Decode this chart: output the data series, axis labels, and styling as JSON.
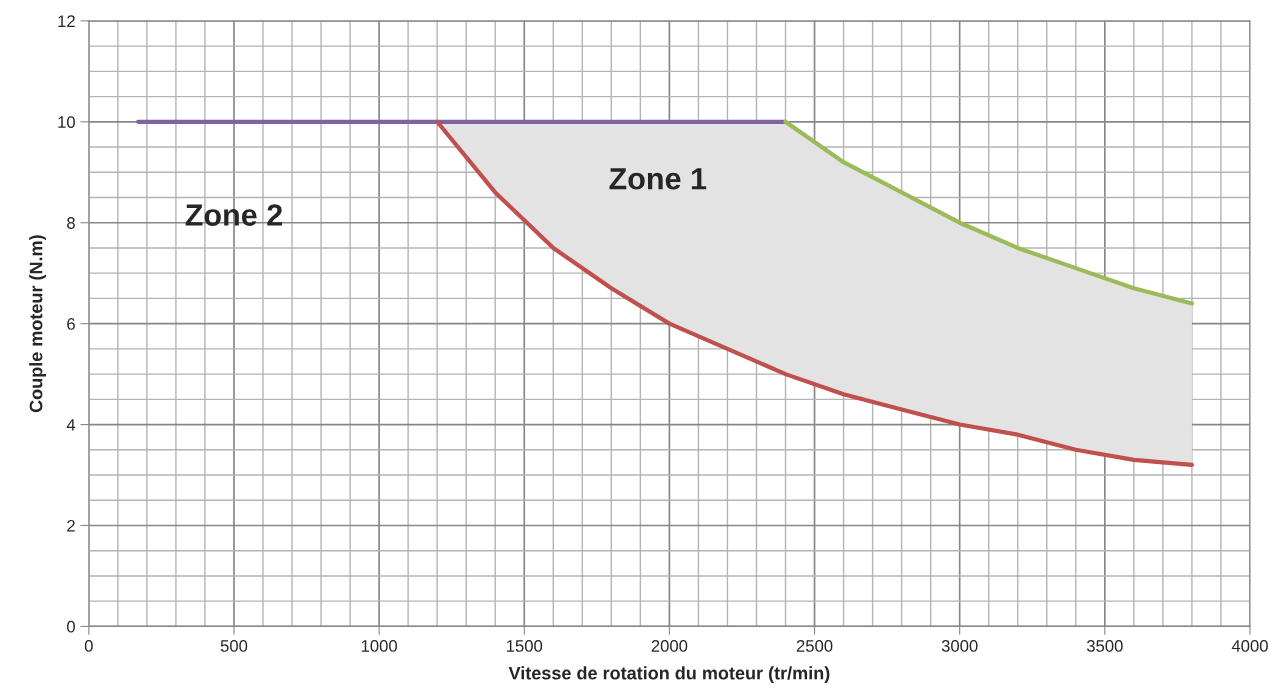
{
  "chart_data": {
    "type": "line",
    "xlabel": "Vitesse de rotation du moteur (tr/min)",
    "ylabel": "Couple moteur (N.m)",
    "xlim": [
      0,
      4000
    ],
    "ylim": [
      0,
      12
    ],
    "xticks": [
      0,
      {
        "value": 100,
        "label": null
      },
      {
        "value": 200,
        "label": null
      },
      {
        "value": 300,
        "label": null
      },
      {
        "value": 400,
        "label": null
      },
      500,
      {
        "value": 600,
        "label": null
      },
      {
        "value": 700,
        "label": null
      },
      {
        "value": 800,
        "label": null
      },
      {
        "value": 900,
        "label": null
      },
      1000,
      {
        "value": 1100,
        "label": null
      },
      {
        "value": 1200,
        "label": null
      },
      {
        "value": 1300,
        "label": null
      },
      {
        "value": 1400,
        "label": null
      },
      1500,
      {
        "value": 1600,
        "label": null
      },
      {
        "value": 1700,
        "label": null
      },
      {
        "value": 1800,
        "label": null
      },
      {
        "value": 1900,
        "label": null
      },
      2000,
      {
        "value": 2100,
        "label": null
      },
      {
        "value": 2200,
        "label": null
      },
      {
        "value": 2300,
        "label": null
      },
      {
        "value": 2400,
        "label": null
      },
      2500,
      {
        "value": 2600,
        "label": null
      },
      {
        "value": 2700,
        "label": null
      },
      {
        "value": 2800,
        "label": null
      },
      {
        "value": 2900,
        "label": null
      },
      3000,
      {
        "value": 3100,
        "label": null
      },
      {
        "value": 3200,
        "label": null
      },
      {
        "value": 3300,
        "label": null
      },
      {
        "value": 3400,
        "label": null
      },
      3500,
      {
        "value": 3600,
        "label": null
      },
      {
        "value": 3700,
        "label": null
      },
      {
        "value": 3800,
        "label": null
      },
      {
        "value": 3900,
        "label": null
      },
      4000
    ],
    "yticks": [
      0,
      {
        "value": 0.5,
        "label": null
      },
      {
        "value": 1,
        "label": null
      },
      {
        "value": 1.5,
        "label": null
      },
      2,
      {
        "value": 2.5,
        "label": null
      },
      {
        "value": 3,
        "label": null
      },
      {
        "value": 3.5,
        "label": null
      },
      4,
      {
        "value": 4.5,
        "label": null
      },
      {
        "value": 5,
        "label": null
      },
      {
        "value": 5.5,
        "label": null
      },
      6,
      {
        "value": 6.5,
        "label": null
      },
      {
        "value": 7,
        "label": null
      },
      {
        "value": 7.5,
        "label": null
      },
      8,
      {
        "value": 8.5,
        "label": null
      },
      {
        "value": 9,
        "label": null
      },
      {
        "value": 9.5,
        "label": null
      },
      10,
      {
        "value": 10.5,
        "label": null
      },
      {
        "value": 11,
        "label": null
      },
      {
        "value": 11.5,
        "label": null
      },
      12
    ],
    "grid": true,
    "series": [
      {
        "color": "#8064a2",
        "x": [
          170,
          1200,
          2400
        ],
        "values": [
          10,
          10,
          10
        ]
      },
      {
        "type": "line",
        "color": "#c0504d",
        "x": [
          1200,
          1400,
          1600,
          1800,
          2000,
          2200,
          2400,
          2600,
          2800,
          3000,
          3200,
          3400,
          3600,
          3800
        ],
        "values": [
          10,
          8.6,
          7.5,
          6.7,
          6.0,
          5.5,
          5.0,
          4.6,
          4.3,
          4.0,
          3.8,
          3.5,
          3.3,
          3.2
        ],
        "lower": [
          10,
          8.6,
          7.5,
          6.7,
          6.0,
          5.5,
          5.0,
          4.6,
          4.3,
          4.0,
          3.8,
          3.5,
          3.3,
          3.2
        ],
        "upper": [
          10,
          10,
          10,
          10,
          10,
          10,
          10,
          9.2,
          8.6,
          8.0,
          7.5,
          7.1,
          6.7,
          6.4
        ]
      },
      {
        "type": "line",
        "color": "#9bbb59",
        "x": [
          2400,
          2600,
          2800,
          3000,
          3200,
          3400,
          3600,
          3800
        ],
        "values": [
          10,
          9.2,
          8.6,
          8.0,
          7.5,
          7.1,
          6.7,
          6.4
        ]
      }
    ],
    "annotations": [
      "Zone 1",
      "Zone 2"
    ]
  }
}
